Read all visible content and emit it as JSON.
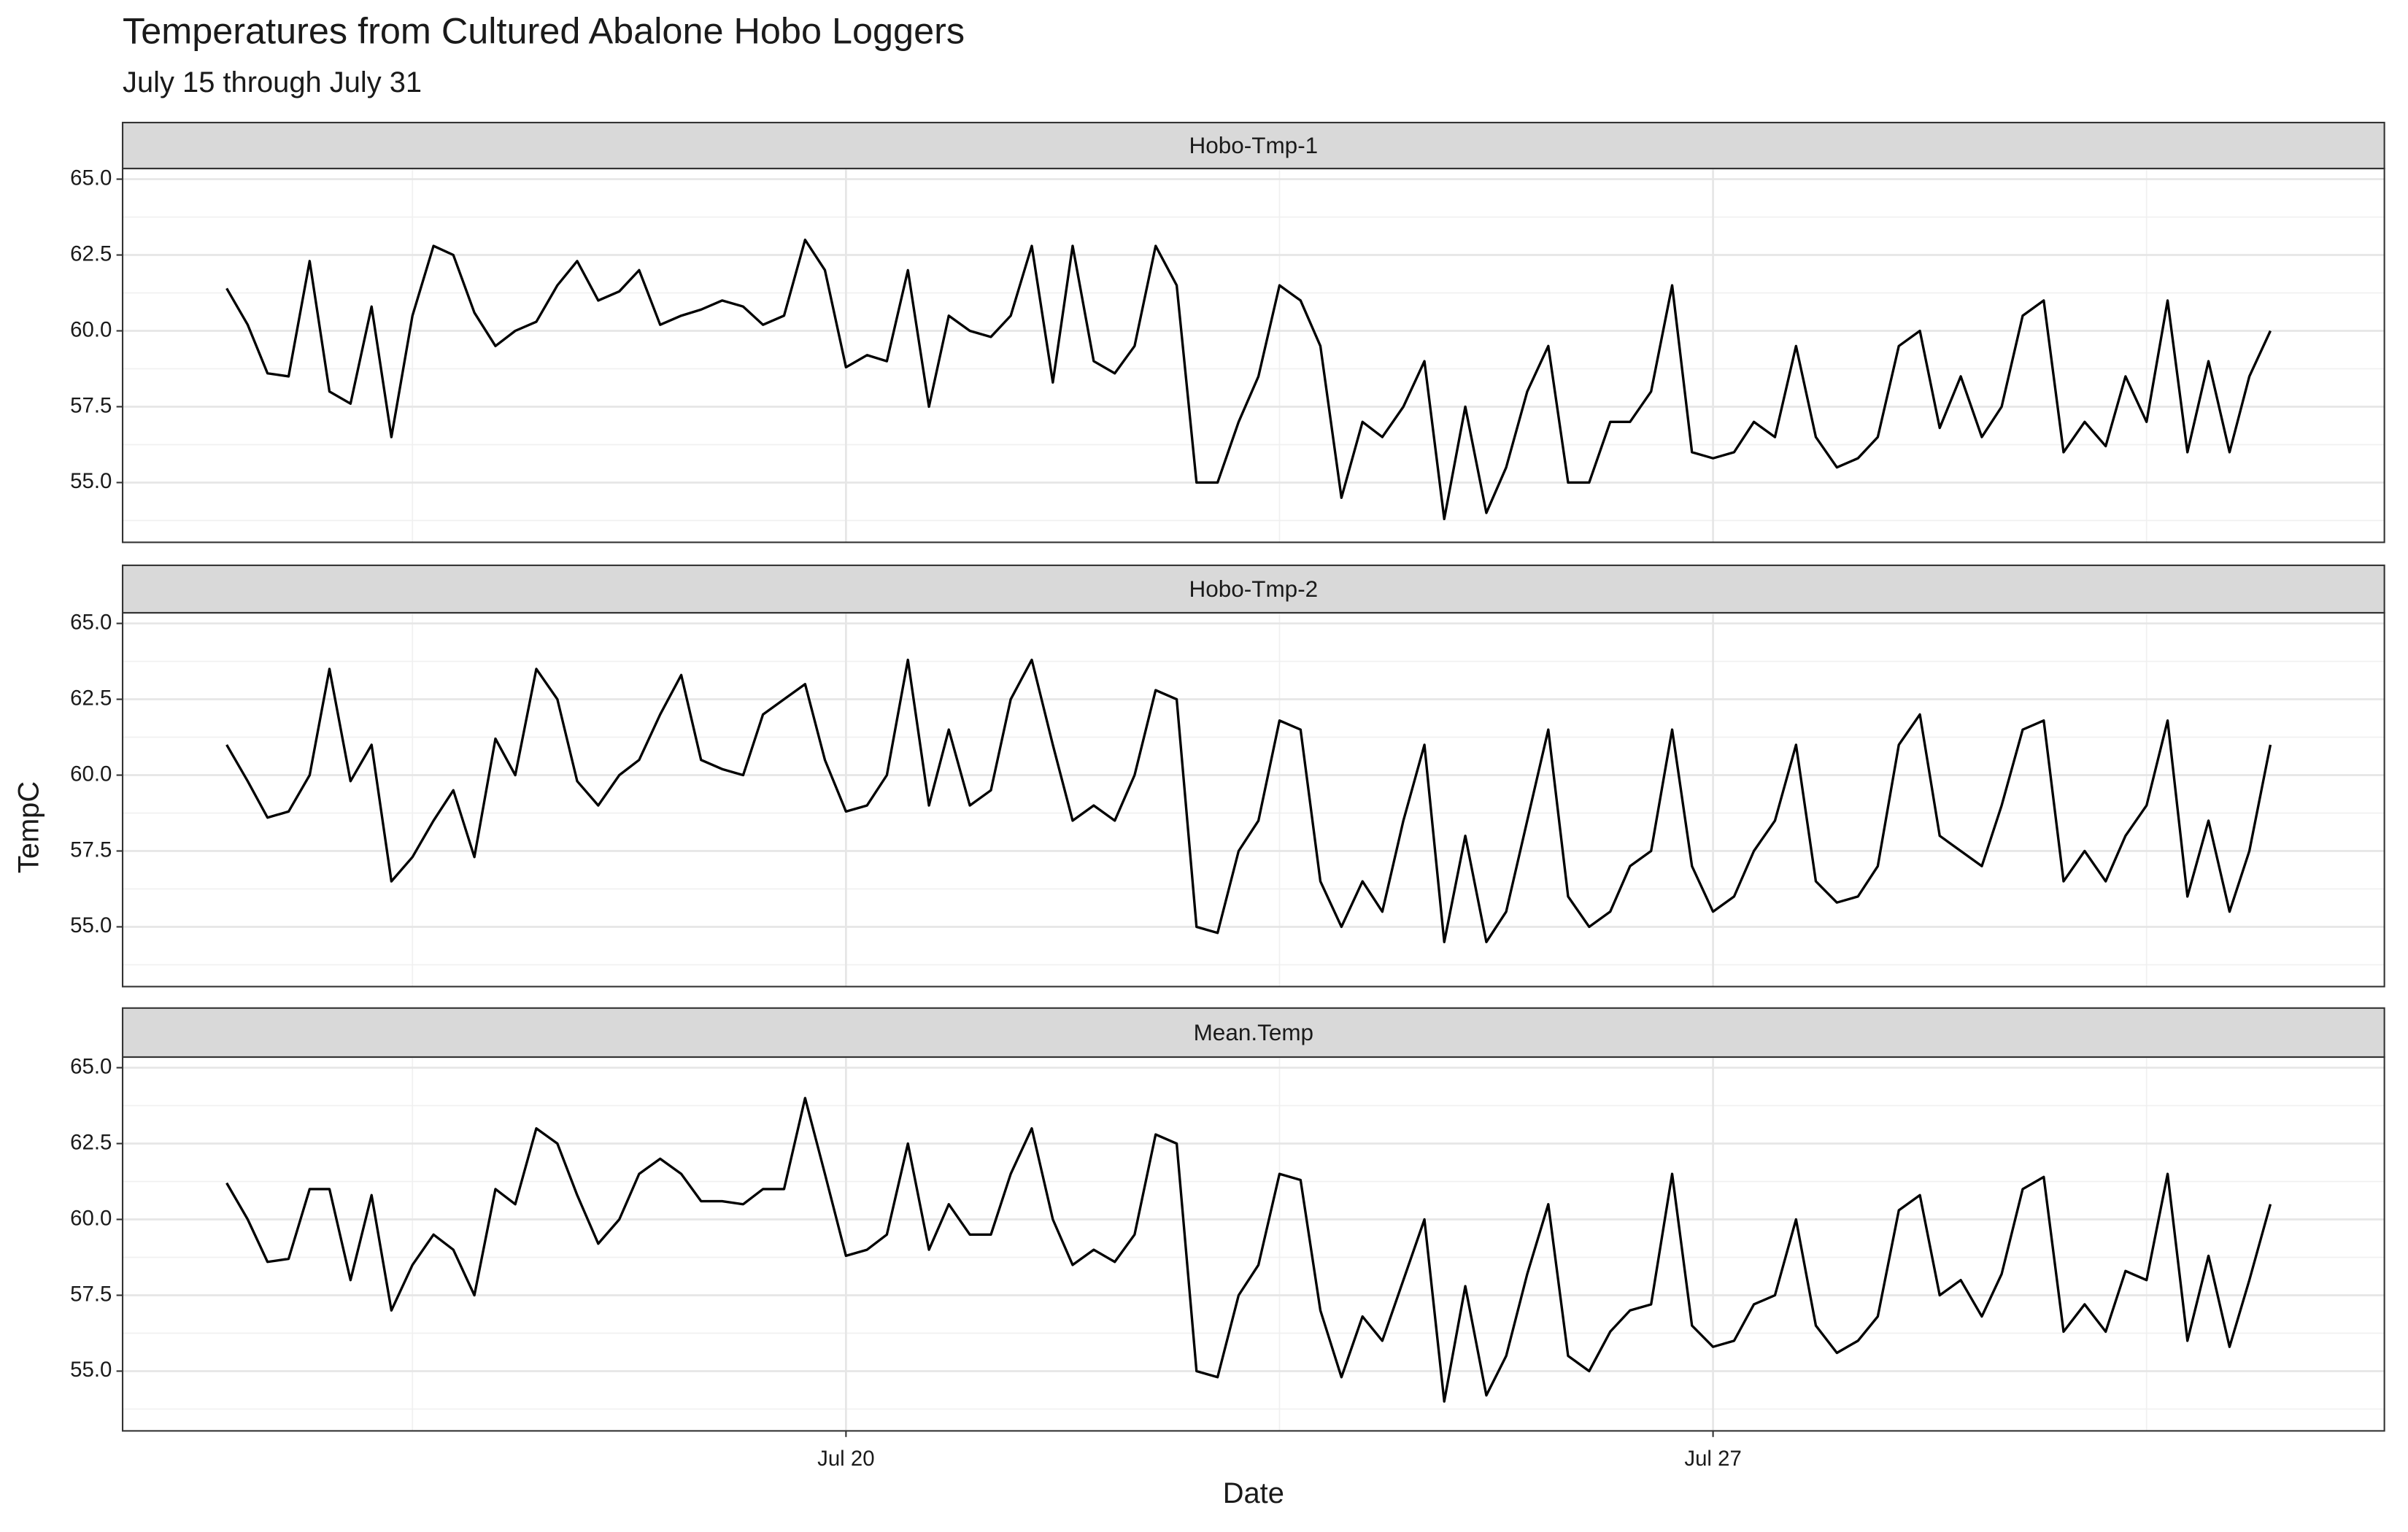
{
  "chart_data": {
    "type": "line",
    "title": "Temperatures from Cultured Abalone Hobo Loggers",
    "subtitle": "July 15 through July 31",
    "x_label": "Date",
    "y_label": "TempC",
    "color": "#000000",
    "grid": true,
    "xlim": [
      14.16,
      32.42
    ],
    "xticks": [
      {
        "value": 20,
        "label": "Jul 20"
      },
      {
        "value": 27,
        "label": "Jul 27"
      }
    ],
    "ylim": [
      53.03,
      65.35
    ],
    "yticks": [
      {
        "value": 55,
        "label": "55.0"
      },
      57.5,
      {
        "value": 60,
        "label": "60.0"
      },
      62.5,
      {
        "value": 65,
        "label": "65.0"
      }
    ],
    "x": [
      15,
      15.17,
      15.33,
      15.5,
      15.67,
      15.83,
      16,
      16.17,
      16.33,
      16.5,
      16.67,
      16.83,
      17,
      17.17,
      17.33,
      17.5,
      17.67,
      17.83,
      18,
      18.17,
      18.33,
      18.5,
      18.67,
      18.83,
      19,
      19.17,
      19.33,
      19.5,
      19.67,
      19.83,
      20,
      20.17,
      20.33,
      20.5,
      20.67,
      20.83,
      21,
      21.17,
      21.33,
      21.5,
      21.67,
      21.83,
      22,
      22.17,
      22.33,
      22.5,
      22.67,
      22.83,
      23,
      23.17,
      23.33,
      23.5,
      23.67,
      23.83,
      24,
      24.17,
      24.33,
      24.5,
      24.67,
      24.83,
      25,
      25.17,
      25.33,
      25.5,
      25.67,
      25.83,
      26,
      26.17,
      26.33,
      26.5,
      26.67,
      26.83,
      27,
      27.17,
      27.33,
      27.5,
      27.67,
      27.83,
      28,
      28.17,
      28.33,
      28.5,
      28.67,
      28.83,
      29,
      29.17,
      29.33,
      29.5,
      29.67,
      29.83,
      30,
      30.17,
      30.33,
      30.5,
      30.67,
      30.83,
      31,
      31.17,
      31.33,
      31.5
    ],
    "series": [
      {
        "name": "Hobo-Tmp-1",
        "values": [
          61.4,
          60.2,
          58.6,
          58.5,
          62.3,
          58.0,
          57.6,
          60.8,
          56.5,
          60.5,
          62.8,
          62.5,
          60.6,
          59.5,
          60.0,
          60.3,
          61.5,
          62.3,
          61.0,
          61.3,
          62.0,
          60.2,
          60.5,
          60.7,
          61.0,
          60.8,
          60.2,
          60.5,
          63.0,
          62.0,
          58.8,
          59.2,
          59.0,
          62.0,
          57.5,
          60.5,
          60.0,
          59.8,
          60.5,
          62.8,
          58.3,
          62.8,
          59.0,
          58.6,
          59.5,
          62.8,
          61.5,
          55.0,
          55.0,
          57.0,
          58.5,
          61.5,
          61.0,
          59.5,
          54.5,
          57.0,
          56.5,
          57.5,
          59.0,
          53.8,
          57.5,
          54.0,
          55.5,
          58.0,
          59.5,
          55.0,
          55.0,
          57.0,
          57.0,
          58.0,
          61.5,
          56.0,
          55.8,
          56.0,
          57.0,
          56.5,
          59.5,
          56.5,
          55.5,
          55.8,
          56.5,
          59.5,
          60.0,
          56.8,
          58.5,
          56.5,
          57.5,
          60.5,
          61.0,
          56.0,
          57.0,
          56.2,
          58.5,
          57.0,
          61.0,
          56.0,
          59.0,
          56.0,
          58.5,
          60.0
        ]
      },
      {
        "name": "Hobo-Tmp-2",
        "values": [
          61.0,
          59.8,
          58.6,
          58.8,
          60.0,
          63.5,
          59.8,
          61.0,
          56.5,
          57.3,
          58.5,
          59.5,
          57.3,
          61.2,
          60.0,
          63.5,
          62.5,
          59.8,
          59.0,
          60.0,
          60.5,
          62.0,
          63.3,
          60.5,
          60.2,
          60.0,
          62.0,
          62.5,
          63.0,
          60.5,
          58.8,
          59.0,
          60.0,
          63.8,
          59.0,
          61.5,
          59.0,
          59.5,
          62.5,
          63.8,
          61.0,
          58.5,
          59.0,
          58.5,
          60.0,
          62.8,
          62.5,
          55.0,
          54.8,
          57.5,
          58.5,
          61.8,
          61.5,
          56.5,
          55.0,
          56.5,
          55.5,
          58.5,
          61.0,
          54.5,
          58.0,
          54.5,
          55.5,
          58.5,
          61.5,
          56.0,
          55.0,
          55.5,
          57.0,
          57.5,
          61.5,
          57.0,
          55.5,
          56.0,
          57.5,
          58.5,
          61.0,
          56.5,
          55.8,
          56.0,
          57.0,
          61.0,
          62.0,
          58.0,
          57.5,
          57.0,
          59.0,
          61.5,
          61.8,
          56.5,
          57.5,
          56.5,
          58.0,
          59.0,
          61.8,
          56.0,
          58.5,
          55.5,
          57.5,
          61.0
        ]
      },
      {
        "name": "Mean.Temp",
        "values": [
          61.2,
          60.0,
          58.6,
          58.7,
          61.0,
          61.0,
          58.0,
          60.8,
          57.0,
          58.5,
          59.5,
          59.0,
          57.5,
          61.0,
          60.5,
          63.0,
          62.5,
          60.8,
          59.2,
          60.0,
          61.5,
          62.0,
          61.5,
          60.6,
          60.6,
          60.5,
          61.0,
          61.0,
          64.0,
          61.5,
          58.8,
          59.0,
          59.5,
          62.5,
          59.0,
          60.5,
          59.5,
          59.5,
          61.5,
          63.0,
          60.0,
          58.5,
          59.0,
          58.6,
          59.5,
          62.8,
          62.5,
          55.0,
          54.8,
          57.5,
          58.5,
          61.5,
          61.3,
          57.0,
          54.8,
          56.8,
          56.0,
          58.0,
          60.0,
          54.0,
          57.8,
          54.2,
          55.5,
          58.2,
          60.5,
          55.5,
          55.0,
          56.3,
          57.0,
          57.2,
          61.5,
          56.5,
          55.8,
          56.0,
          57.2,
          57.5,
          60.0,
          56.5,
          55.6,
          56.0,
          56.8,
          60.3,
          60.8,
          57.5,
          58.0,
          56.8,
          58.2,
          61.0,
          61.4,
          56.3,
          57.2,
          56.3,
          58.3,
          58.0,
          61.5,
          56.0,
          58.8,
          55.8,
          58.0,
          60.5
        ]
      }
    ]
  }
}
